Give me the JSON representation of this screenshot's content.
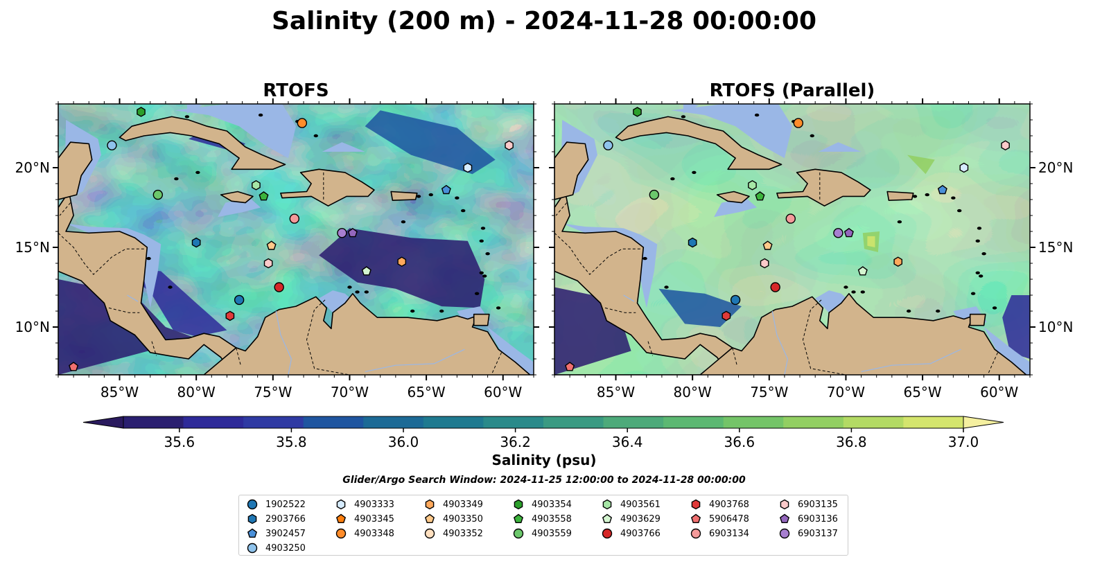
{
  "title": "Salinity (200 m) - 2024-11-28 00:00:00",
  "panels": [
    {
      "title": "RTOFS",
      "variant": "base"
    },
    {
      "title": "RTOFS (Parallel)",
      "variant": "parallel"
    }
  ],
  "extent": {
    "lon": [
      -89,
      -58
    ],
    "lat": [
      7,
      24
    ]
  },
  "x_ticks": [
    {
      "lon": -85,
      "label": "85°W"
    },
    {
      "lon": -80,
      "label": "80°W"
    },
    {
      "lon": -75,
      "label": "75°W"
    },
    {
      "lon": -70,
      "label": "70°W"
    },
    {
      "lon": -65,
      "label": "65°W"
    },
    {
      "lon": -60,
      "label": "60°W"
    }
  ],
  "y_ticks": [
    {
      "lat": 20,
      "label": "20°N"
    },
    {
      "lat": 15,
      "label": "15°N"
    },
    {
      "lat": 10,
      "label": "10°N"
    }
  ],
  "colorbar": {
    "label": "Salinity (psu)",
    "min": 35.5,
    "max": 37.0,
    "tick_labels": [
      "35.6",
      "35.8",
      "36.0",
      "36.2",
      "36.4",
      "36.6",
      "36.8",
      "37.0"
    ],
    "tick_values": [
      35.6,
      35.8,
      36.0,
      36.2,
      36.4,
      36.6,
      36.8,
      37.0
    ],
    "colors": [
      "#2a1f70",
      "#2e2a99",
      "#2f3aa3",
      "#1f55a0",
      "#1c6a96",
      "#1f7a90",
      "#2a8a8a",
      "#3a9a82",
      "#4daa7a",
      "#5cb872",
      "#74c468",
      "#92cf62",
      "#b3da64",
      "#d4e56d"
    ],
    "extend_low": "#2a1a5e",
    "extend_high": "#f5f0a0"
  },
  "search_window": "Glider/Argo Search Window: 2024-11-25 12:00:00 to 2024-11-28 00:00:00",
  "colors": {
    "land": "#d2b48c",
    "shallow": "#9ab7e6",
    "deep_low": "#2a1a6e"
  },
  "legend": [
    {
      "id": "1902522",
      "color": "#1f77b4",
      "marker": "circle"
    },
    {
      "id": "2903766",
      "color": "#1f77b4",
      "marker": "hexagon"
    },
    {
      "id": "3902457",
      "color": "#4a90d9",
      "marker": "pentagon"
    },
    {
      "id": "4903250",
      "color": "#8fc3ec",
      "marker": "circle"
    },
    {
      "id": "4903333",
      "color": "#d6ecff",
      "marker": "hexagon"
    },
    {
      "id": "4903345",
      "color": "#ff7f0e",
      "marker": "pentagon"
    },
    {
      "id": "4903348",
      "color": "#ff8c2a",
      "marker": "circle"
    },
    {
      "id": "4903349",
      "color": "#ffa95c",
      "marker": "hexagon"
    },
    {
      "id": "4903350",
      "color": "#ffc98a",
      "marker": "pentagon"
    },
    {
      "id": "4903352",
      "color": "#ffe0c0",
      "marker": "circle"
    },
    {
      "id": "4903354",
      "color": "#2ca02c",
      "marker": "hexagon"
    },
    {
      "id": "4903558",
      "color": "#3cb33c",
      "marker": "pentagon"
    },
    {
      "id": "4903559",
      "color": "#6cc86c",
      "marker": "circle"
    },
    {
      "id": "4903561",
      "color": "#a6e6a6",
      "marker": "hexagon"
    },
    {
      "id": "4903629",
      "color": "#d4f5d0",
      "marker": "pentagon"
    },
    {
      "id": "4903766",
      "color": "#d62728",
      "marker": "circle"
    },
    {
      "id": "4903768",
      "color": "#e03a3a",
      "marker": "hexagon"
    },
    {
      "id": "5906478",
      "color": "#f07070",
      "marker": "pentagon"
    },
    {
      "id": "6903134",
      "color": "#f49a9a",
      "marker": "circle"
    },
    {
      "id": "6903135",
      "color": "#fbcaca",
      "marker": "hexagon"
    },
    {
      "id": "6903136",
      "color": "#9467bd",
      "marker": "pentagon"
    },
    {
      "id": "6903137",
      "color": "#a77fd0",
      "marker": "circle"
    }
  ],
  "stations": [
    {
      "id": "4903354",
      "lon": -83.6,
      "lat": 23.5
    },
    {
      "id": "4903250",
      "lon": -85.5,
      "lat": 21.4
    },
    {
      "id": "4903348",
      "lon": -73.1,
      "lat": 22.8
    },
    {
      "id": "6903135",
      "lon": -59.6,
      "lat": 21.4
    },
    {
      "id": "4903333",
      "lon": -62.3,
      "lat": 20.0
    },
    {
      "id": "3902457",
      "lon": -63.7,
      "lat": 18.6
    },
    {
      "id": "4903559",
      "lon": -82.5,
      "lat": 18.3
    },
    {
      "id": "4903561",
      "lon": -76.1,
      "lat": 18.9
    },
    {
      "id": "4903558",
      "lon": -75.6,
      "lat": 18.2
    },
    {
      "id": "6903134",
      "lon": -73.6,
      "lat": 16.8
    },
    {
      "id": "2903766",
      "lon": -80.0,
      "lat": 15.3
    },
    {
      "id": "4903350",
      "lon": -75.1,
      "lat": 15.1
    },
    {
      "id": "6903137",
      "lon": -70.5,
      "lat": 15.9
    },
    {
      "id": "6903136",
      "lon": -69.8,
      "lat": 15.9
    },
    {
      "id": "6903135",
      "lon": -75.3,
      "lat": 14.0
    },
    {
      "id": "4903349",
      "lon": -66.6,
      "lat": 14.1
    },
    {
      "id": "4903629",
      "lon": -68.9,
      "lat": 13.5
    },
    {
      "id": "4903766",
      "lon": -74.6,
      "lat": 12.5
    },
    {
      "id": "1902522",
      "lon": -77.2,
      "lat": 11.7
    },
    {
      "id": "4903768",
      "lon": -77.8,
      "lat": 10.7
    },
    {
      "id": "5906478",
      "lon": -88.0,
      "lat": 7.5
    }
  ]
}
